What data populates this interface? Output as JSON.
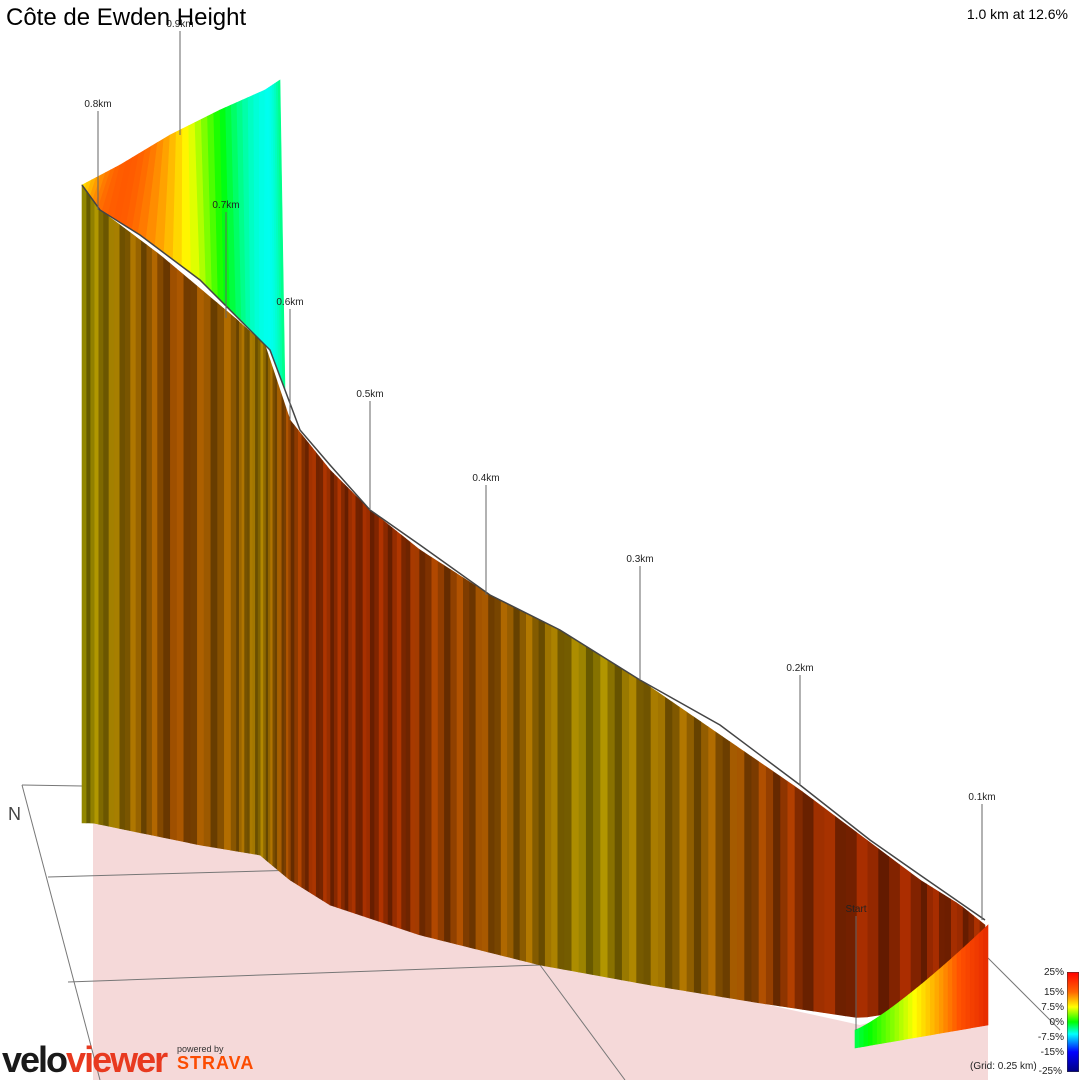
{
  "header": {
    "title": "Côte de Ewden Height",
    "summary": "1.0 km at 12.6%"
  },
  "branding": {
    "logo_part1": "velo",
    "logo_part2": "viewer",
    "powered_by": "powered by",
    "strava": "STRAVA"
  },
  "footer": {
    "grid_note": "(Grid: 0.25 km)"
  },
  "legend": {
    "labels": [
      "25%",
      "15%",
      "7.5%",
      "0%",
      "-7.5%",
      "-15%",
      "-25%"
    ],
    "colors": [
      "#ff0000",
      "#ffff00",
      "#00ff00",
      "#00ffff",
      "#0000ff",
      "#000080"
    ]
  },
  "chart_data": {
    "type": "area",
    "title": "Côte de Ewden Height",
    "subtitle": "1.0 km at 12.6%",
    "distance_labels": [
      "Start",
      "0.1km",
      "0.2km",
      "0.3km",
      "0.4km",
      "0.5km",
      "0.6km",
      "0.7km",
      "0.8km",
      "0.9km"
    ],
    "distance_km": [
      0.0,
      0.1,
      0.2,
      0.3,
      0.4,
      0.5,
      0.6,
      0.7,
      0.8,
      0.9,
      1.0
    ],
    "gradient_percent": [
      6,
      16,
      17,
      12,
      9,
      13,
      16,
      15,
      10,
      13,
      8
    ],
    "total_distance_km": 1.0,
    "average_gradient_percent": 12.6,
    "color_scale_percent": [
      25,
      15,
      7.5,
      0,
      -7.5,
      -15,
      -25
    ],
    "grid_km": 0.25
  }
}
